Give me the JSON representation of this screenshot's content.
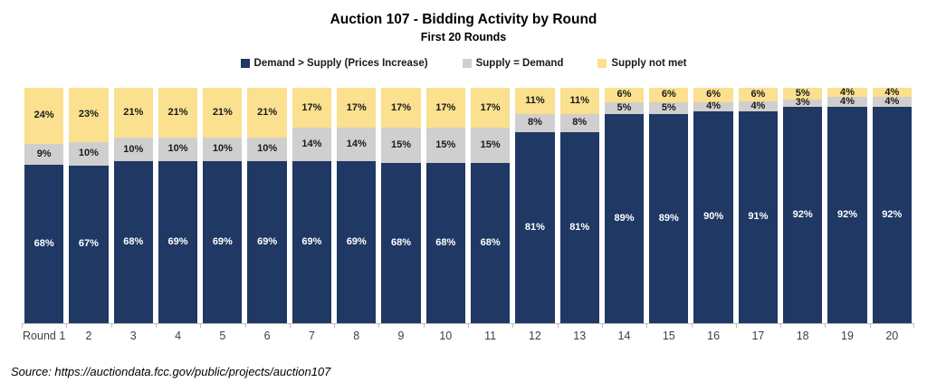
{
  "title": "Auction 107 - Bidding Activity by Round",
  "subtitle": "First 20 Rounds",
  "source_note": "Source:  https://auctiondata.fcc.gov/public/projects/auction107",
  "colors": {
    "demand_gt_supply": "#1F3864",
    "supply_eq_demand": "#D0CECE",
    "supply_not_met": "#FAE08F",
    "axis_line": "#BFBFBF",
    "axis_label_text": "#3f3f3f"
  },
  "chart_data": {
    "type": "bar",
    "stacked": true,
    "percent_stacked": true,
    "grid": false,
    "legend_position": "top",
    "title": "Auction 107 - Bidding Activity by Round",
    "subtitle": "First 20 Rounds",
    "xlabel": "",
    "ylabel": "",
    "ylim": [
      0,
      100
    ],
    "categories": [
      "Round 1",
      "2",
      "3",
      "4",
      "5",
      "6",
      "7",
      "8",
      "9",
      "10",
      "11",
      "12",
      "13",
      "14",
      "15",
      "16",
      "17",
      "18",
      "19",
      "20"
    ],
    "series": [
      {
        "name": "Demand > Supply (Prices Increase)",
        "color": "#1F3864",
        "label_color": "#FFFFFF",
        "values": [
          68,
          67,
          68,
          69,
          69,
          69,
          69,
          69,
          68,
          68,
          68,
          81,
          81,
          89,
          89,
          90,
          91,
          92,
          92,
          92
        ]
      },
      {
        "name": "Supply = Demand",
        "color": "#D0CECE",
        "label_color": "#1A1A1A",
        "values": [
          9,
          10,
          10,
          10,
          10,
          10,
          14,
          14,
          15,
          15,
          15,
          8,
          8,
          5,
          5,
          4,
          4,
          3,
          4,
          4
        ]
      },
      {
        "name": "Supply not met",
        "color": "#FAE08F",
        "label_color": "#1A1A1A",
        "values": [
          24,
          23,
          21,
          21,
          21,
          21,
          17,
          17,
          17,
          17,
          17,
          11,
          11,
          6,
          6,
          6,
          6,
          5,
          4,
          4
        ]
      }
    ]
  }
}
